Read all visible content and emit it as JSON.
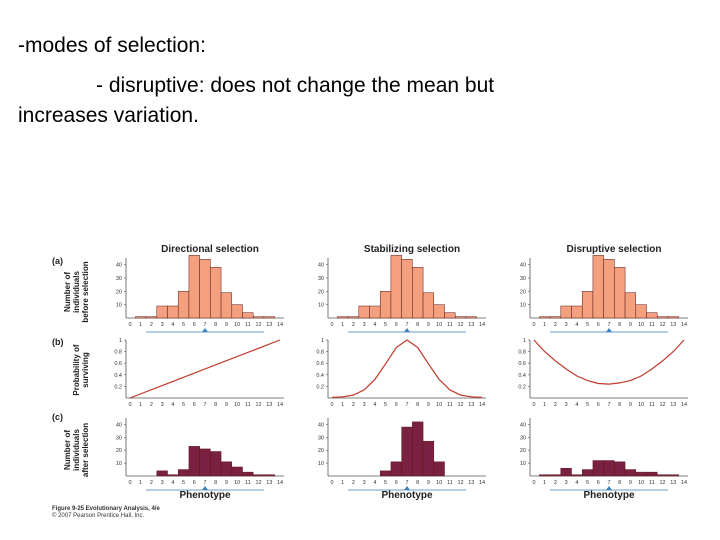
{
  "slide": {
    "heading": "-modes of selection:",
    "bullet_line1": "- disruptive: does not change the mean but",
    "bullet_line2": "increases variation."
  },
  "colors": {
    "before_bar": "#f4a07e",
    "after_bar": "#7a2040",
    "curve": "#c0392b",
    "axis": "#555555",
    "marker": "#3a7fc1"
  },
  "figure": {
    "row_labels": [
      "(a)",
      "(b)",
      "(c)"
    ],
    "column_titles": [
      "Directional selection",
      "Stabilizing selection",
      "Disruptive selection"
    ],
    "ylabel_a": [
      "Number of",
      "individuals",
      "before selection"
    ],
    "ylabel_b": [
      "Probability of",
      "surviving"
    ],
    "ylabel_c": [
      "Number of",
      "individuals",
      "after selection"
    ],
    "xlabel": "Phenotype",
    "caption_line1": "Figure 9-25  Evolutionary Analysis, 4/e",
    "caption_line2": "© 2007 Pearson Prentice Hall, Inc.",
    "x_ticks": [
      "0",
      "1",
      "2",
      "3",
      "4",
      "5",
      "6",
      "7",
      "8",
      "9",
      "10",
      "11",
      "12",
      "13",
      "14"
    ]
  },
  "chart_data": [
    {
      "type": "bar",
      "title": "Directional selection",
      "row": "before",
      "categories": [
        "0",
        "1",
        "2",
        "3",
        "4",
        "5",
        "6",
        "7",
        "8",
        "9",
        "10",
        "11",
        "12",
        "13",
        "14"
      ],
      "values": [
        0,
        1,
        1,
        9,
        9,
        20,
        47,
        44,
        38,
        19,
        10,
        4,
        1,
        1,
        0
      ],
      "ylim": [
        0,
        45
      ],
      "yticks": [
        "10",
        "20",
        "30",
        "40"
      ],
      "mean_marker": 7
    },
    {
      "type": "bar",
      "title": "Stabilizing selection",
      "row": "before",
      "categories": [
        "0",
        "1",
        "2",
        "3",
        "4",
        "5",
        "6",
        "7",
        "8",
        "9",
        "10",
        "11",
        "12",
        "13",
        "14"
      ],
      "values": [
        0,
        1,
        1,
        9,
        9,
        20,
        47,
        44,
        38,
        19,
        10,
        4,
        1,
        1,
        0
      ],
      "ylim": [
        0,
        45
      ],
      "yticks": [
        "10",
        "20",
        "30",
        "40"
      ],
      "mean_marker": 7
    },
    {
      "type": "bar",
      "title": "Disruptive selection",
      "row": "before",
      "categories": [
        "0",
        "1",
        "2",
        "3",
        "4",
        "5",
        "6",
        "7",
        "8",
        "9",
        "10",
        "11",
        "12",
        "13",
        "14"
      ],
      "values": [
        0,
        1,
        1,
        9,
        9,
        20,
        47,
        44,
        38,
        19,
        10,
        4,
        1,
        1,
        0
      ],
      "ylim": [
        0,
        45
      ],
      "yticks": [
        "10",
        "20",
        "30",
        "40"
      ],
      "mean_marker": 7
    },
    {
      "type": "line",
      "title": "Directional selection",
      "row": "survival",
      "x": [
        0,
        14
      ],
      "y": [
        0,
        1
      ],
      "ylim": [
        0,
        1
      ],
      "yticks": [
        "0.2",
        "0.4",
        "0.6",
        "0.8",
        "1"
      ]
    },
    {
      "type": "line",
      "title": "Stabilizing selection",
      "row": "survival",
      "x": [
        0,
        1,
        2,
        3,
        4,
        5,
        6,
        7,
        8,
        9,
        10,
        11,
        12,
        13,
        14
      ],
      "y": [
        0.01,
        0.02,
        0.05,
        0.14,
        0.32,
        0.59,
        0.87,
        1.0,
        0.87,
        0.59,
        0.32,
        0.14,
        0.05,
        0.02,
        0.01
      ],
      "ylim": [
        0,
        1
      ],
      "yticks": [
        "0.2",
        "0.4",
        "0.6",
        "0.8",
        "1"
      ]
    },
    {
      "type": "line",
      "title": "Disruptive selection",
      "row": "survival",
      "x": [
        0,
        1,
        2,
        3,
        4,
        5,
        6,
        7,
        8,
        9,
        10,
        11,
        12,
        13,
        14
      ],
      "y": [
        1.0,
        0.8,
        0.64,
        0.5,
        0.38,
        0.3,
        0.25,
        0.24,
        0.26,
        0.3,
        0.38,
        0.5,
        0.64,
        0.8,
        1.0
      ],
      "ylim": [
        0,
        1
      ],
      "yticks": [
        "0.2",
        "0.4",
        "0.6",
        "0.8",
        "1"
      ]
    },
    {
      "type": "bar",
      "title": "Directional selection",
      "row": "after",
      "categories": [
        "0",
        "1",
        "2",
        "3",
        "4",
        "5",
        "6",
        "7",
        "8",
        "9",
        "10",
        "11",
        "12",
        "13",
        "14"
      ],
      "values": [
        0,
        0,
        0,
        4,
        1,
        5,
        23,
        21,
        19,
        11,
        7,
        3,
        1,
        1,
        0
      ],
      "ylim": [
        0,
        45
      ],
      "yticks": [
        "10",
        "20",
        "30",
        "40"
      ],
      "mean_marker": 7
    },
    {
      "type": "bar",
      "title": "Stabilizing selection",
      "row": "after",
      "categories": [
        "0",
        "1",
        "2",
        "3",
        "4",
        "5",
        "6",
        "7",
        "8",
        "9",
        "10",
        "11",
        "12",
        "13",
        "14"
      ],
      "values": [
        0,
        0,
        0,
        0,
        0,
        4,
        11,
        38,
        42,
        27,
        11,
        0,
        0,
        0,
        0
      ],
      "ylim": [
        0,
        45
      ],
      "yticks": [
        "10",
        "20",
        "30",
        "40"
      ],
      "mean_marker": 7
    },
    {
      "type": "bar",
      "title": "Disruptive selection",
      "row": "after",
      "categories": [
        "0",
        "1",
        "2",
        "3",
        "4",
        "5",
        "6",
        "7",
        "8",
        "9",
        "10",
        "11",
        "12",
        "13",
        "14"
      ],
      "values": [
        0,
        1,
        1,
        6,
        1,
        5,
        12,
        12,
        11,
        5,
        3,
        3,
        1,
        1,
        0
      ],
      "ylim": [
        0,
        45
      ],
      "yticks": [
        "10",
        "20",
        "30",
        "40"
      ],
      "mean_marker": 7
    }
  ]
}
